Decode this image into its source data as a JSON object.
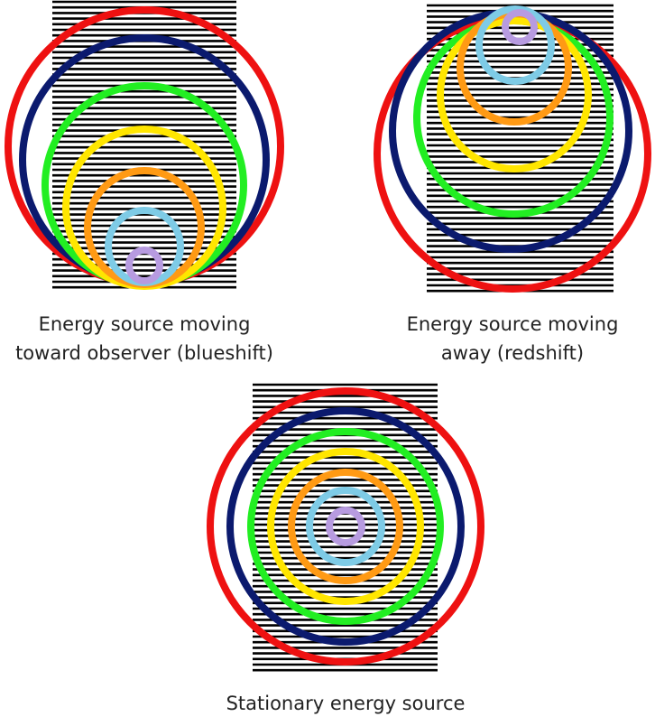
{
  "captions": {
    "blueshift": [
      "Energy source moving",
      "toward observer (blueshift)"
    ],
    "redshift": [
      "Energy source moving",
      "away (redshift)"
    ],
    "stationary": [
      "Stationary energy source"
    ]
  }
}
